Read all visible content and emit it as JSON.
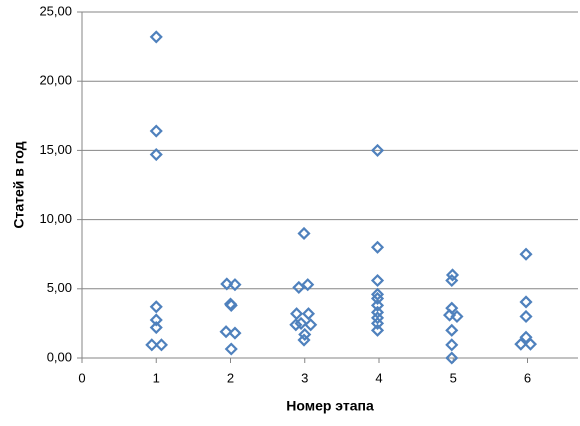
{
  "chart_data": {
    "type": "scatter",
    "x_label": "Номер этапа",
    "y_label": "Статей в год",
    "x": [
      1,
      1,
      1,
      1,
      1,
      1,
      0.94,
      1.07,
      1.95,
      2.06,
      2.0,
      2.01,
      1.94,
      2.06,
      2.01,
      2.99,
      2.92,
      3.04,
      2.89,
      3.05,
      2.88,
      2.95,
      3.08,
      3.0,
      2.99,
      3.98,
      3.98,
      3.98,
      3.98,
      3.98,
      3.98,
      3.98,
      3.98,
      3.98,
      3.98,
      4.99,
      4.98,
      4.98,
      4.95,
      5.05,
      4.98,
      4.98,
      4.98,
      5.98,
      5.98,
      5.98,
      5.98,
      5.91,
      6.04
    ],
    "values": [
      23.2,
      16.4,
      14.7,
      3.7,
      2.75,
      2.2,
      0.95,
      0.95,
      5.35,
      5.3,
      3.9,
      3.8,
      1.9,
      1.8,
      0.65,
      9.0,
      5.1,
      5.3,
      3.2,
      3.2,
      2.4,
      2.5,
      2.4,
      1.7,
      1.3,
      15.0,
      8.0,
      5.6,
      4.6,
      4.3,
      3.8,
      3.3,
      2.9,
      2.5,
      2.0,
      6.0,
      5.6,
      3.6,
      3.1,
      3.0,
      2.0,
      0.95,
      0,
      7.5,
      4.05,
      3.0,
      1.5,
      1.0,
      1.0
    ],
    "color": "#4f81bd",
    "xlim": [
      0,
      6.68
    ],
    "xticks": [
      0,
      1,
      2,
      3,
      4,
      5,
      6
    ],
    "ylim": [
      0,
      25
    ],
    "yticks": [
      {
        "value": 0,
        "label": "0,00"
      },
      {
        "value": 5,
        "label": "5,00"
      },
      {
        "value": 10,
        "label": "10,00"
      },
      {
        "value": 15,
        "label": "15,00"
      },
      {
        "value": 20,
        "label": "20,00"
      },
      {
        "value": 25,
        "label": "25,00"
      }
    ],
    "grid": true
  }
}
